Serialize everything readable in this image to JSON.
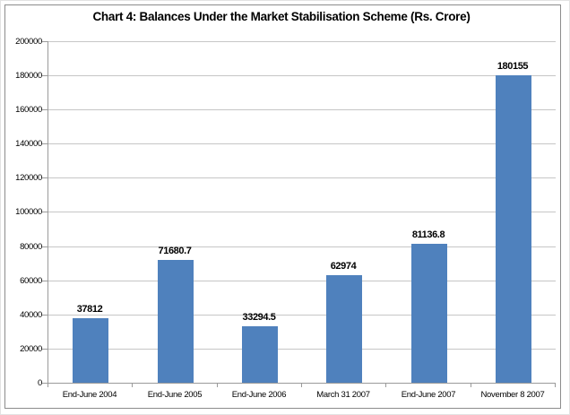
{
  "chart_data": {
    "type": "bar",
    "title": "Chart 4: Balances Under the Market Stabilisation Scheme (Rs. Crore)",
    "categories": [
      "End-June 2004",
      "End-June 2005",
      "End-June 2006",
      "March 31 2007",
      "End-June 2007",
      "November 8 2007"
    ],
    "values": [
      37812,
      71680.7,
      33294.5,
      62974,
      81136.8,
      180155
    ],
    "data_labels": [
      "37812",
      "71680.7",
      "33294.5",
      "62974",
      "81136.8",
      "180155"
    ],
    "xlabel": "",
    "ylabel": "",
    "ylim": [
      0,
      200000
    ],
    "ytick_step": 20000,
    "ytick_labels": [
      "0",
      "20000",
      "40000",
      "60000",
      "80000",
      "100000",
      "120000",
      "140000",
      "160000",
      "180000",
      "200000"
    ],
    "grid": true,
    "legend": "none",
    "colors": {
      "bar_fill": "#4f81bd",
      "gridline": "#c6c6c6",
      "axis_line": "#9a9a9a",
      "text": "#000000",
      "background": "#ffffff",
      "frame_border": "#8c8c8c"
    }
  }
}
